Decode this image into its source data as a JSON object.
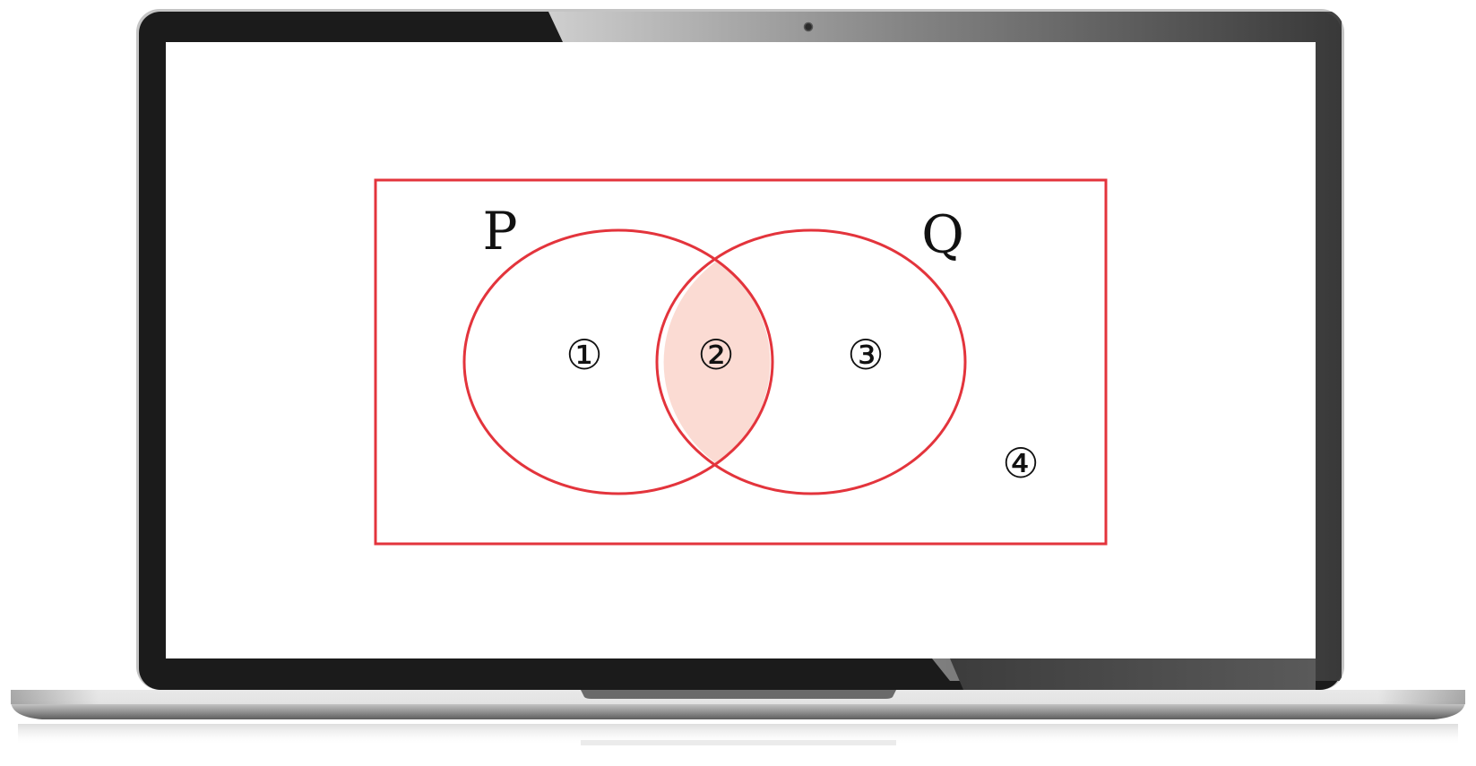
{
  "diagram": {
    "set_labels": {
      "p": "P",
      "q": "Q"
    },
    "region_labels": {
      "r1": "①",
      "r2": "②",
      "r3": "③",
      "r4": "④"
    },
    "highlighted_region": "②",
    "colors": {
      "outline": "#e3343c",
      "highlight_fill": "#fbdbd3",
      "label_text": "#111111"
    }
  },
  "device": {
    "type": "laptop",
    "colors": {
      "bezel": "#1b1b1b",
      "screen": "#ffffff",
      "base_light": "#e8e8e8",
      "base_dark": "#6e6e6e"
    }
  }
}
